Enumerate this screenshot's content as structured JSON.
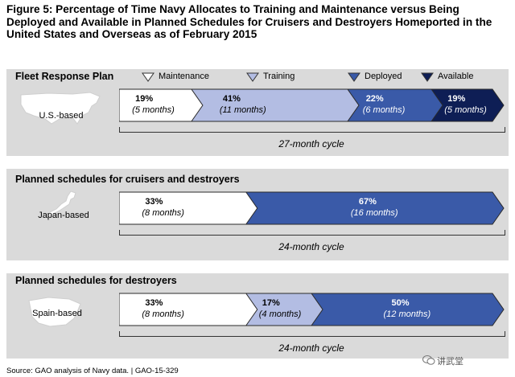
{
  "title": "Figure 5: Percentage of Time Navy Allocates to Training and Maintenance versus Being Deployed and Available in Planned Schedules for Cruisers and Destroyers Homeported in the United States and Overseas as of February 2015",
  "legend": [
    {
      "label": "Maintenance",
      "color": "#ffffff",
      "stroke": "#333333"
    },
    {
      "label": "Training",
      "color": "#b3bde3",
      "stroke": "#333333"
    },
    {
      "label": "Deployed",
      "color": "#3a5aa8",
      "stroke": "#333333"
    },
    {
      "label": "Available",
      "color": "#0e1e55",
      "stroke": "#333333"
    }
  ],
  "panels": [
    {
      "title": "Fleet Response Plan",
      "map_label": "U.S.-based",
      "cycle_label": "27-month cycle",
      "segments": [
        {
          "pct": "19%",
          "months": "(5 months)",
          "color": "#ffffff",
          "text": "#000000"
        },
        {
          "pct": "41%",
          "months": "(11 months)",
          "color": "#b3bde3",
          "text": "#000000"
        },
        {
          "pct": "22%",
          "months": "(6 months)",
          "color": "#3a5aa8",
          "text": "#ffffff"
        },
        {
          "pct": "19%",
          "months": "(5 months)",
          "color": "#0e1e55",
          "text": "#ffffff"
        }
      ]
    },
    {
      "title": "Planned schedules for cruisers and destroyers",
      "map_label": "Japan-based",
      "cycle_label": "24-month cycle",
      "segments": [
        {
          "pct": "33%",
          "months": "(8 months)",
          "color": "#ffffff",
          "text": "#000000"
        },
        {
          "pct": "67%",
          "months": "(16 months)",
          "color": "#3a5aa8",
          "text": "#ffffff"
        }
      ]
    },
    {
      "title": "Planned schedules for destroyers",
      "map_label": "Spain-based",
      "cycle_label": "24-month cycle",
      "segments": [
        {
          "pct": "33%",
          "months": "(8 months)",
          "color": "#ffffff",
          "text": "#000000"
        },
        {
          "pct": "17%",
          "months": "(4 months)",
          "color": "#b3bde3",
          "text": "#000000"
        },
        {
          "pct": "50%",
          "months": "(12 months)",
          "color": "#3a5aa8",
          "text": "#ffffff"
        }
      ]
    }
  ],
  "source": "Source: GAO analysis of Navy data.  |  GAO-15-329",
  "watermark": "讲武堂",
  "chart_data": {
    "type": "bar",
    "title": "Figure 5: Percentage of Time Navy Allocates to Training and Maintenance versus Being Deployed and Available in Planned Schedules for Cruisers and Destroyers Homeported in the United States and Overseas as of February 2015",
    "categories": [
      "U.S.-based",
      "Japan-based",
      "Spain-based"
    ],
    "series": [
      {
        "name": "Maintenance",
        "values": [
          19,
          33,
          33
        ],
        "months": [
          5,
          8,
          8
        ]
      },
      {
        "name": "Training",
        "values": [
          41,
          0,
          17
        ],
        "months": [
          11,
          0,
          4
        ]
      },
      {
        "name": "Deployed",
        "values": [
          22,
          67,
          50
        ],
        "months": [
          6,
          16,
          12
        ]
      },
      {
        "name": "Available",
        "values": [
          19,
          0,
          0
        ],
        "months": [
          5,
          0,
          0
        ]
      }
    ],
    "cycles_months": [
      27,
      24,
      24
    ],
    "stacked": true,
    "orientation": "horizontal",
    "legend_position": "top"
  }
}
